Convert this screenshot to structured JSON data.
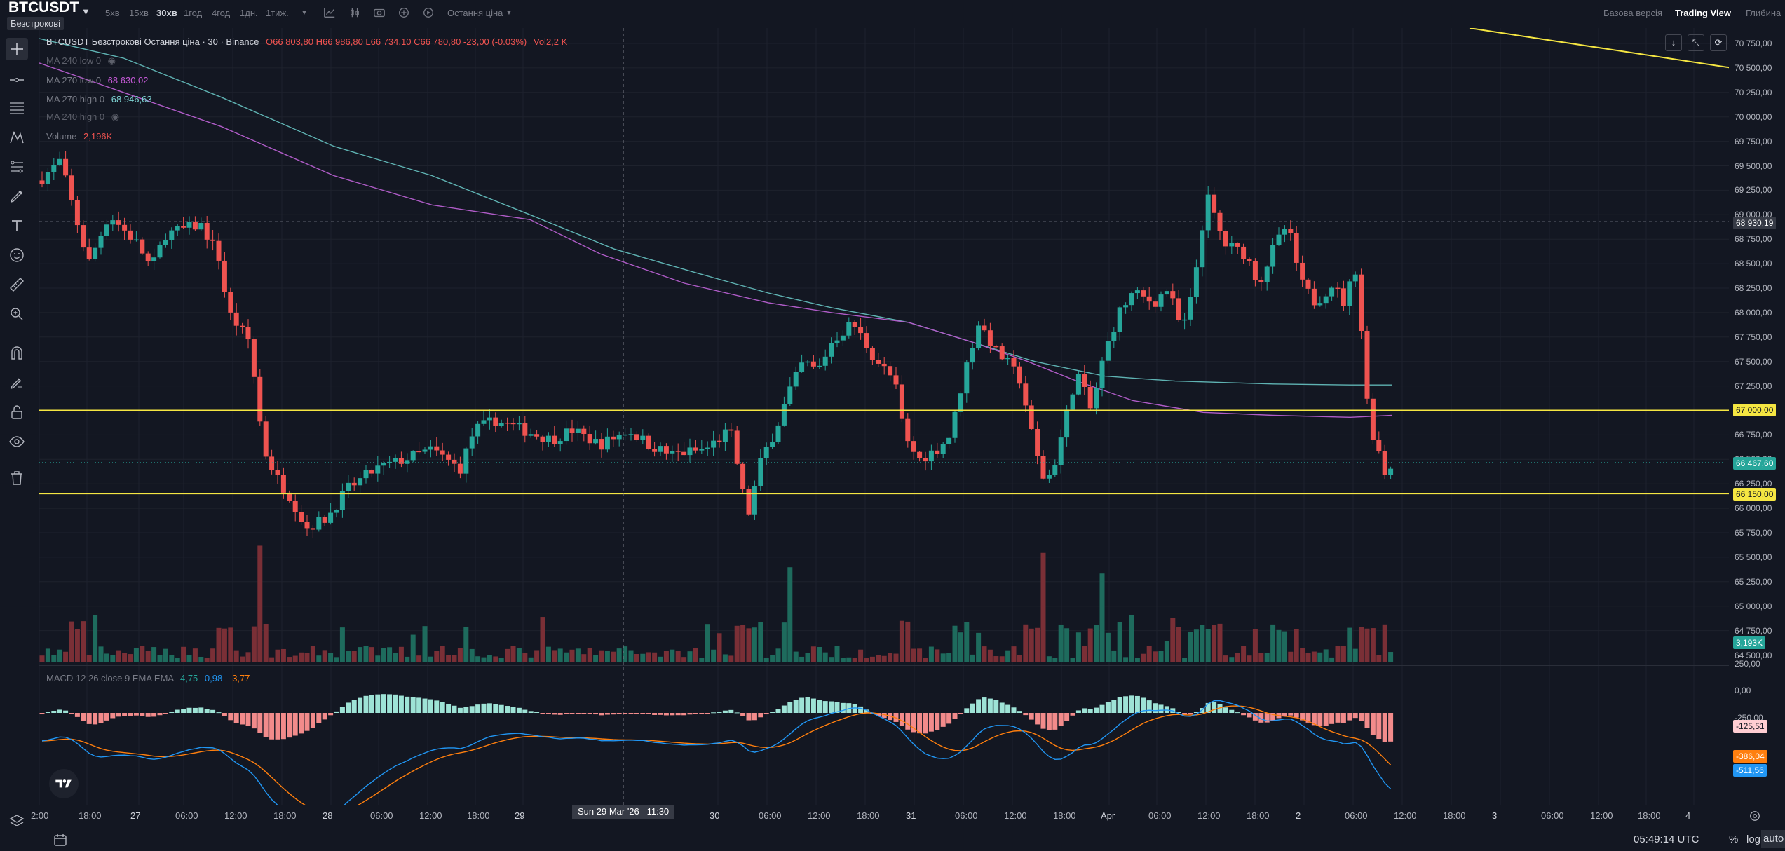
{
  "header": {
    "symbol": "BTCUSDT",
    "market_badge": "Безстрокові",
    "timeframes": [
      "5хв",
      "15хв",
      "30хв",
      "1год",
      "4год",
      "1дн.",
      "1тиж."
    ],
    "active_timeframe": "30хв",
    "price_type": "Остання ціна",
    "views": [
      "Базова версія",
      "Trading View",
      "Глибина"
    ],
    "active_view": "Trading View"
  },
  "legend": {
    "main": "BTCUSDT Безстрокові Остання ціна · 30 · Binance",
    "ohlc": "O66 803,80 H66 986,80 L66 734,10 C66 780,80 -23,00 (-0.03%)",
    "vol": "Vol2,2 K",
    "ma240_low": "MA 240 low 0",
    "ma270_low": "MA 270 low 0",
    "ma270_low_val": "68 630,02",
    "ma270_high": "MA 270 high 0",
    "ma270_high_val": "68 946,63",
    "ma240_high": "MA 240 high 0",
    "volume": "Volume",
    "volume_val": "2,196K",
    "macd": "MACD 12 26 close 9 EMA EMA",
    "macd_v1": "4,75",
    "macd_v2": "0,98",
    "macd_v3": "-3,77"
  },
  "price_axis": [
    "70 750,00",
    "70 500,00",
    "70 250,00",
    "70 000,00",
    "69 750,00",
    "69 500,00",
    "69 250,00",
    "69 000,00",
    "68 750,00",
    "68 500,00",
    "68 250,00",
    "68 000,00",
    "67 750,00",
    "67 500,00",
    "67 250,00",
    "67 000,00",
    "66 750,00",
    "66 500,00",
    "66 250,00",
    "66 000,00",
    "65 750,00",
    "65 500,00",
    "65 250,00",
    "65 000,00",
    "64 750,00",
    "64 500,00"
  ],
  "price_labels": {
    "crosshair": "68 930,19",
    "level_upper": "67 000,00",
    "current": "66 467,60",
    "level_lower": "66 150,00",
    "volume": "3,193K"
  },
  "macd_axis": [
    "250,00",
    "0,00",
    "-250,00",
    "-750,00"
  ],
  "macd_labels": {
    "hist": "-125,51",
    "signal": "-386,04",
    "macd": "-511,56"
  },
  "time_axis": [
    "2:00",
    "18:00",
    "27",
    "06:00",
    "12:00",
    "18:00",
    "28",
    "06:00",
    "12:00",
    "18:00",
    "29",
    "30",
    "06:00",
    "12:00",
    "18:00",
    "31",
    "06:00",
    "12:00",
    "18:00",
    "Apr",
    "06:00",
    "12:00",
    "18:00",
    "2",
    "06:00",
    "12:00",
    "18:00",
    "3",
    "06:00",
    "12:00",
    "18:00",
    "4"
  ],
  "crosshair_time": "Sun 29 Mar '26   11:30",
  "bottom": {
    "clock": "05:49:14 UTC",
    "pct": "%",
    "log": "log",
    "auto": "auto"
  },
  "colors": {
    "up": "#26a69a",
    "down": "#ef5350",
    "level": "#f5e642",
    "ma_purple": "#b05cc8",
    "ma_teal": "#5fb3b3",
    "macd": "#2196f3",
    "signal": "#ff7f0e"
  }
}
